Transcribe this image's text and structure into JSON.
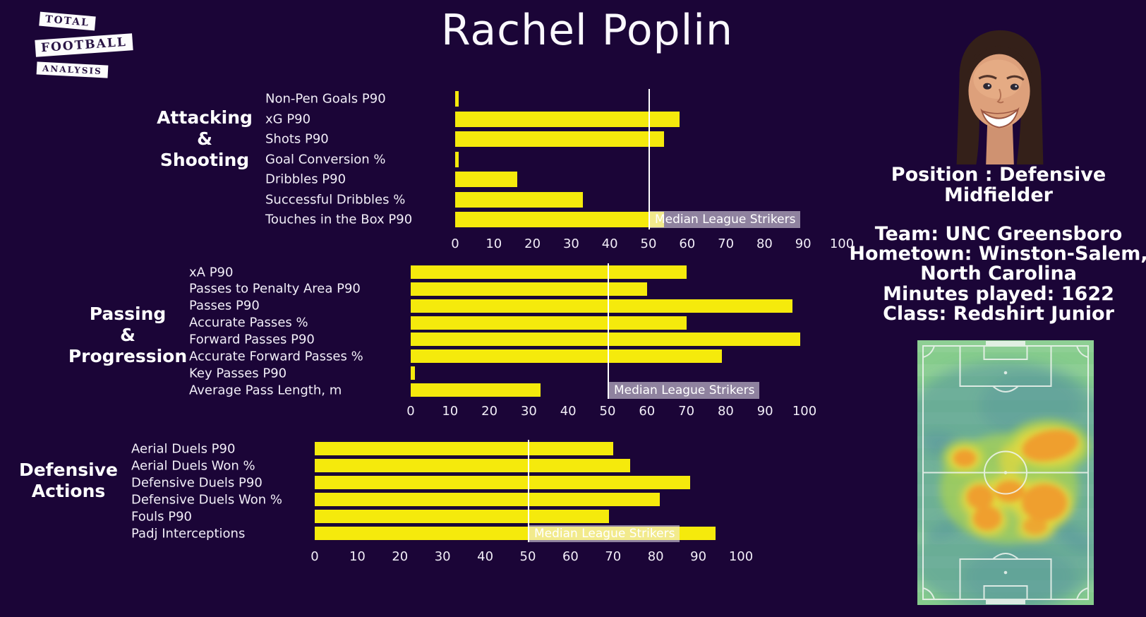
{
  "page": {
    "title": "Rachel Poplin",
    "background_color": "#1b0537",
    "bar_color": "#f5ea0c",
    "median_line_color": "#ffffff"
  },
  "logo": {
    "lines": [
      "Total",
      "Football",
      "Analysis"
    ]
  },
  "player": {
    "position_lines": [
      "Position : Defensive",
      "Midfielder"
    ],
    "info_lines": [
      "Team: UNC Greensboro",
      "Hometown: Winston-Salem,",
      "North Carolina",
      "Minutes played: 1622",
      "Class: Redshirt Junior"
    ]
  },
  "chart_data": [
    {
      "type": "bar",
      "title_lines": [
        "Attacking",
        "&",
        "Shooting"
      ],
      "categories": [
        "Non-Pen Goals P90",
        "xG P90",
        "Shots P90",
        "Goal Conversion %",
        "Dribbles P90",
        "Successful Dribbles %",
        "Touches in the Box P90"
      ],
      "values": [
        1,
        58,
        54,
        1,
        16,
        33,
        54
      ],
      "median": {
        "value": 50,
        "label": "Median League Strikers"
      },
      "xlim": [
        0,
        100
      ],
      "xticks": [
        0,
        10,
        20,
        30,
        40,
        50,
        60,
        70,
        80,
        90,
        100
      ],
      "xlabel": "",
      "ylabel": "",
      "orientation": "horizontal",
      "bar_color": "#f5ea0c"
    },
    {
      "type": "bar",
      "title_lines": [
        "Passing",
        "&",
        "Progression"
      ],
      "categories": [
        "xA P90",
        "Passes to Penalty Area P90",
        "Passes P90",
        "Accurate Passes %",
        "Forward Passes P90",
        "Accurate Forward Passes %",
        "Key Passes P90",
        "Average Pass Length, m"
      ],
      "values": [
        70,
        60,
        97,
        70,
        99,
        79,
        1,
        33
      ],
      "median": {
        "value": 50,
        "label": "Median League Strikers"
      },
      "xlim": [
        0,
        100
      ],
      "xticks": [
        0,
        10,
        20,
        30,
        40,
        50,
        60,
        70,
        80,
        90,
        100
      ],
      "xlabel": "",
      "ylabel": "",
      "orientation": "horizontal",
      "bar_color": "#f5ea0c"
    },
    {
      "type": "bar",
      "title_lines": [
        "Defensive",
        "Actions"
      ],
      "categories": [
        "Aerial Duels P90",
        "Aerial Duels Won %",
        "Defensive Duels P90",
        "Defensive Duels Won %",
        "Fouls P90",
        "Padj Interceptions"
      ],
      "values": [
        70,
        74,
        88,
        81,
        69,
        94
      ],
      "median": {
        "value": 50,
        "label": "Median League Strikers"
      },
      "xlim": [
        0,
        100
      ],
      "xticks": [
        0,
        10,
        20,
        30,
        40,
        50,
        60,
        70,
        80,
        90,
        100
      ],
      "xlabel": "",
      "ylabel": "",
      "orientation": "horizontal",
      "bar_color": "#f5ea0c"
    }
  ]
}
